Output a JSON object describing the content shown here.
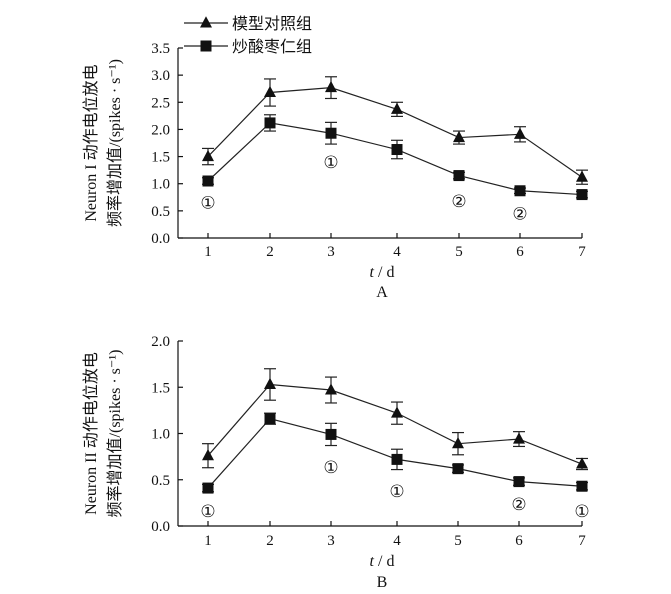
{
  "chart_data": [
    {
      "type": "line",
      "panel": "A",
      "ylabel_line1": "Neuron I 动作电位放电",
      "ylabel_line2": "频率增加值/(spikes · s⁻¹)",
      "xlabel_italic": "t",
      "xlabel_rest": " / d",
      "x": [
        1,
        2,
        3,
        4,
        5,
        6,
        7
      ],
      "xticks": [
        "1",
        "2",
        "3",
        "4",
        "5",
        "6",
        "7"
      ],
      "ylim": [
        0,
        3.5
      ],
      "yticks": [
        "0.0",
        "0.5",
        "1.0",
        "1.5",
        "2.0",
        "2.5",
        "3.0",
        "3.5"
      ],
      "legend": {
        "position": "top-left",
        "entries": [
          "模型对照组",
          "炒酸枣仁组"
        ]
      },
      "series": [
        {
          "name": "模型对照组",
          "marker": "triangle",
          "values": [
            1.5,
            2.68,
            2.77,
            2.37,
            1.85,
            1.91,
            1.12
          ],
          "errors": [
            0.15,
            0.25,
            0.2,
            0.13,
            0.12,
            0.14,
            0.13
          ]
        },
        {
          "name": "炒酸枣仁组",
          "marker": "square",
          "values": [
            1.05,
            2.12,
            1.93,
            1.63,
            1.15,
            0.87,
            0.8
          ],
          "errors": [
            0.06,
            0.15,
            0.2,
            0.17,
            0.06,
            0.05,
            0.06
          ]
        }
      ],
      "annotations": [
        {
          "text": "①",
          "x": 1,
          "y": 0.65
        },
        {
          "text": "①",
          "x": 3,
          "y": 1.4
        },
        {
          "text": "②",
          "x": 5,
          "y": 0.68
        },
        {
          "text": "②",
          "x": 6,
          "y": 0.45
        }
      ]
    },
    {
      "type": "line",
      "panel": "B",
      "ylabel_line1": "Neuron II 动作电位放电",
      "ylabel_line2": "频率增加值/(spikes · s⁻¹)",
      "xlabel_italic": "t",
      "xlabel_rest": " / d",
      "x": [
        1,
        2,
        3,
        4,
        5,
        6,
        7
      ],
      "xticks": [
        "1",
        "2",
        "3",
        "4",
        "5",
        "6",
        "7"
      ],
      "ylim": [
        0,
        2.0
      ],
      "yticks": [
        "0.0",
        "0.5",
        "1.0",
        "1.5",
        "2.0"
      ],
      "series": [
        {
          "name": "模型对照组",
          "marker": "triangle",
          "values": [
            0.76,
            1.53,
            1.47,
            1.22,
            0.89,
            0.94,
            0.67
          ],
          "errors": [
            0.13,
            0.17,
            0.14,
            0.12,
            0.12,
            0.08,
            0.06
          ]
        },
        {
          "name": "炒酸枣仁组",
          "marker": "square",
          "values": [
            0.41,
            1.16,
            0.99,
            0.72,
            0.62,
            0.48,
            0.43
          ],
          "errors": [
            0.04,
            0.06,
            0.12,
            0.11,
            0.04,
            0.04,
            0.04
          ]
        }
      ],
      "annotations": [
        {
          "text": "①",
          "x": 1,
          "y": 0.16
        },
        {
          "text": "①",
          "x": 3,
          "y": 0.64
        },
        {
          "text": "①",
          "x": 4,
          "y": 0.38
        },
        {
          "text": "②",
          "x": 6,
          "y": 0.24
        },
        {
          "text": "①",
          "x": 7,
          "y": 0.16
        }
      ]
    }
  ]
}
